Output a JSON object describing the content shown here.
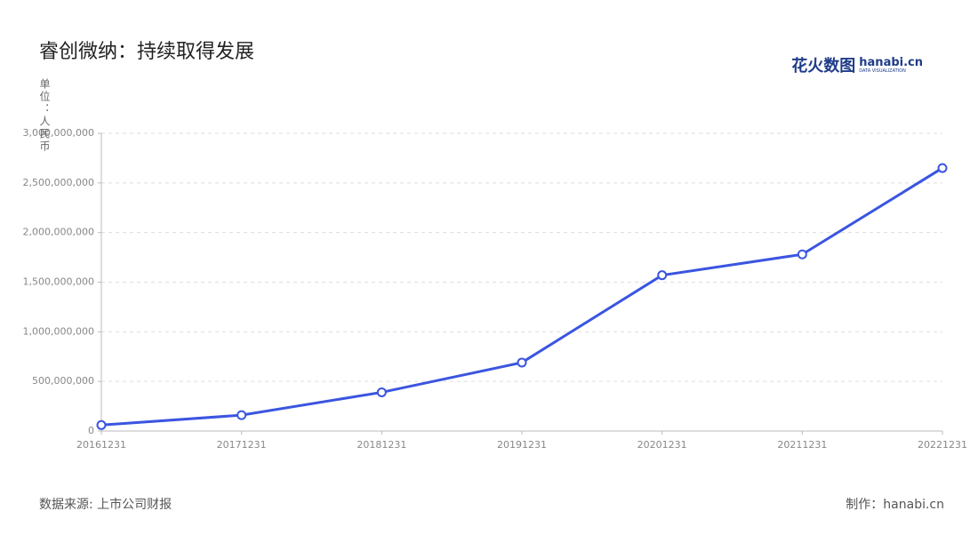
{
  "chart_data": {
    "type": "line",
    "title": "睿创微纳：持续取得发展",
    "y_label": "单位：人民币",
    "logo": {
      "brand": "花火数图",
      "site": "hanabi.cn",
      "tagline": "DATA VISUALIZATION"
    },
    "source": "数据来源: 上市公司财报",
    "credit": "制作：hanabi.cn",
    "categories": [
      "20161231",
      "20171231",
      "20181231",
      "20191231",
      "20201231",
      "20211231",
      "20221231"
    ],
    "series": [
      {
        "name": "睿创微纳",
        "color": "#3b55e0",
        "values": [
          60000000,
          160000000,
          390000000,
          690000000,
          1570000000,
          1780000000,
          2650000000
        ]
      }
    ],
    "ylim": [
      0,
      3000000000
    ],
    "yticks": [
      0,
      {
        "value": 500000000,
        "label": "500,000,000"
      },
      {
        "value": 1000000000,
        "label": "1,000,000,000"
      },
      {
        "value": 1500000000,
        "label": "1,500,000,000"
      },
      {
        "value": 2000000000,
        "label": "2,000,000,000"
      },
      {
        "value": 2500000000,
        "label": "2,500,000,000"
      },
      {
        "value": 3000000000,
        "label": "3,000,000,000"
      }
    ],
    "grid": true
  }
}
